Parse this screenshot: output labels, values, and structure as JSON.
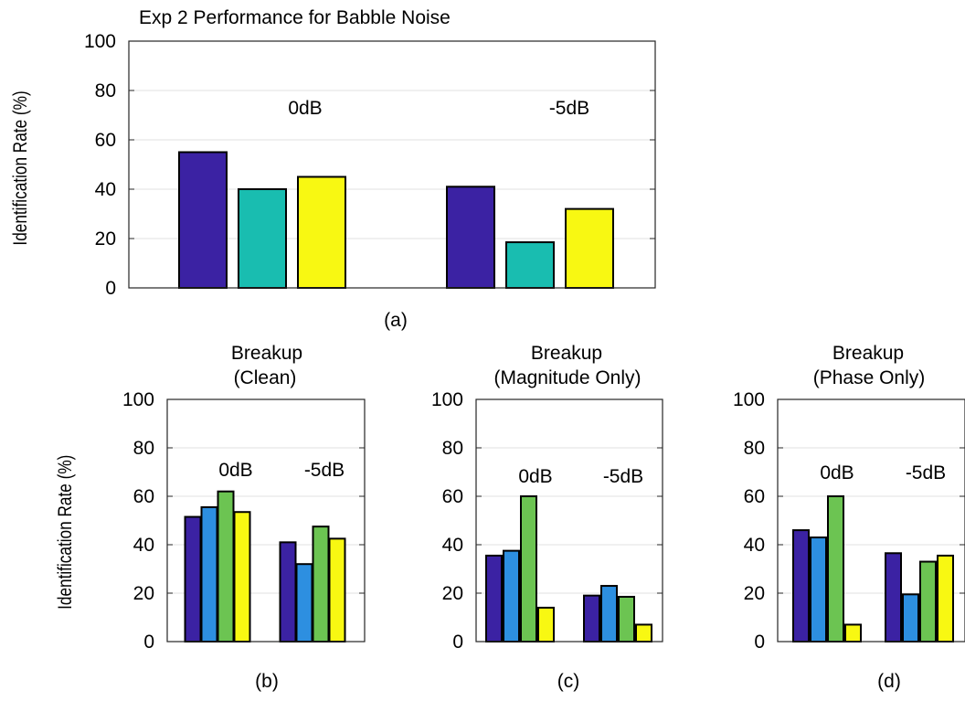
{
  "chart_data": [
    {
      "type": "bar",
      "caption": "(a)",
      "title": "Exp 2 Performance for Babble Noise",
      "ylabel": "Identification Rate (%)",
      "ylim": [
        0,
        100
      ],
      "yticks": [
        0,
        20,
        40,
        60,
        80,
        100
      ],
      "grid": true,
      "categories": [
        "0dB",
        "-5dB"
      ],
      "series": [
        {
          "values": [
            55,
            41
          ]
        },
        {
          "values": [
            40,
            18.5
          ]
        },
        {
          "values": [
            45,
            32
          ]
        }
      ],
      "colors": [
        "#3b22a3",
        "#19bdb0",
        "#f8f812"
      ]
    },
    {
      "type": "bar",
      "caption": "(b)",
      "title": [
        "Breakup",
        "(Clean)"
      ],
      "ylabel": "Identification Rate (%)",
      "ylim": [
        0,
        100
      ],
      "yticks": [
        0,
        20,
        40,
        60,
        80,
        100
      ],
      "grid": true,
      "categories": [
        "0dB",
        "-5dB"
      ],
      "series": [
        {
          "values": [
            51.5,
            41
          ]
        },
        {
          "values": [
            55.5,
            32
          ]
        },
        {
          "values": [
            62,
            47.5
          ]
        },
        {
          "values": [
            53.5,
            42.5
          ]
        }
      ],
      "colors": [
        "#3b22a3",
        "#2d8fe0",
        "#6cc452",
        "#f8f812"
      ]
    },
    {
      "type": "bar",
      "caption": "(c)",
      "title": [
        "Breakup",
        "(Magnitude Only)"
      ],
      "ylabel": "",
      "ylim": [
        0,
        100
      ],
      "yticks": [
        0,
        20,
        40,
        60,
        80,
        100
      ],
      "grid": true,
      "categories": [
        "0dB",
        "-5dB"
      ],
      "series": [
        {
          "values": [
            35.5,
            19
          ]
        },
        {
          "values": [
            37.5,
            23
          ]
        },
        {
          "values": [
            60,
            18.5
          ]
        },
        {
          "values": [
            14,
            7
          ]
        }
      ],
      "colors": [
        "#3b22a3",
        "#2d8fe0",
        "#6cc452",
        "#f8f812"
      ]
    },
    {
      "type": "bar",
      "caption": "(d)",
      "title": [
        "Breakup",
        "(Phase Only)"
      ],
      "ylabel": "",
      "ylim": [
        0,
        100
      ],
      "yticks": [
        0,
        20,
        40,
        60,
        80,
        100
      ],
      "grid": true,
      "categories": [
        "0dB",
        "-5dB"
      ],
      "series": [
        {
          "values": [
            46,
            36.5
          ]
        },
        {
          "values": [
            43,
            19.5
          ]
        },
        {
          "values": [
            60,
            33
          ]
        },
        {
          "values": [
            7,
            35.5
          ]
        }
      ],
      "colors": [
        "#3b22a3",
        "#2d8fe0",
        "#6cc452",
        "#f8f812"
      ]
    }
  ]
}
